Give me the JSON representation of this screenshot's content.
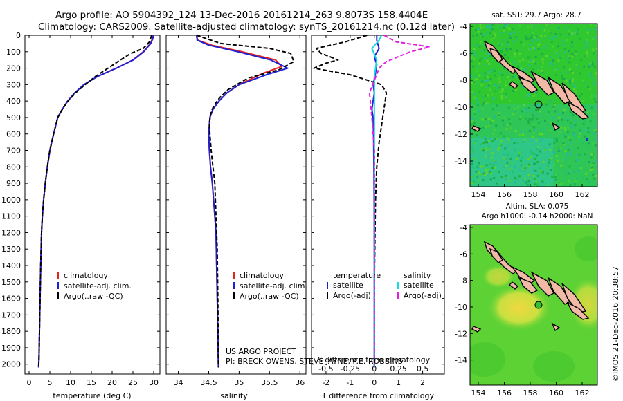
{
  "header": {
    "title_line1": "Argo profile: AO 5904392_124 13-Dec-2016 20161214_263 9.8073S 158.4404E",
    "title_line2": "Climatology: CARS2009. Satellite-adjusted climatology: synTS_20161214.nc (0.12d later)"
  },
  "credits": {
    "project": "US ARGO PROJECT",
    "pi": "PI: BRECK OWENS, STEVE JAYNE, P.E. ROBBINS",
    "imos": "©IMOS 21-Dec-2016 20:38:57"
  },
  "colors": {
    "climatology": "#e8231f",
    "satellite": "#1f1fd6",
    "argo": "#000000",
    "salinity_satellite": "#18d8e0",
    "salinity_argo": "#e020e0",
    "map_green": "#28c832",
    "land": "#f2b9a7"
  },
  "panel_labels": {
    "temp_x": "temperature (deg C)",
    "sal_x": "salinity",
    "diff_x": "T difference from climatology",
    "diff_x2": "S difference from climatology"
  },
  "legend_temp": {
    "climatology": "climatology",
    "satellite": "satellite-adj. clim.",
    "argo": "Argo(..raw -QC)"
  },
  "legend_diff": {
    "temperature_head": "temperature",
    "salinity_head": "salinity",
    "satellite": "satellite",
    "argo": "Argo(-adj)"
  },
  "map_top": {
    "title": "sat. SST: 29.7 Argo: 28.7",
    "icon": "sst-map-icon"
  },
  "map_bottom": {
    "title_line1": "Altim. SLA: 0.075",
    "title_line2": "Argo h1000: -0.14 h2000: NaN",
    "icon": "sla-map-icon"
  },
  "map_axes": {
    "lon_ticks": [
      "154",
      "156",
      "158",
      "160",
      "162"
    ],
    "lat_ticks": [
      "-4",
      "-6",
      "-8",
      "-10",
      "-12",
      "-14"
    ]
  },
  "chart_data": [
    {
      "type": "line",
      "name": "temperature-profile",
      "xlabel": "temperature (deg C)",
      "ylabel": "",
      "xlim": [
        -1,
        31.5
      ],
      "ylim": [
        2060,
        0
      ],
      "x_ticks": [
        0,
        5,
        10,
        15,
        20,
        25,
        30
      ],
      "y_ticks": [
        0,
        100,
        200,
        300,
        400,
        500,
        600,
        700,
        800,
        900,
        1000,
        1100,
        1200,
        1300,
        1400,
        1500,
        1600,
        1700,
        1800,
        1900,
        2000
      ],
      "series": [
        {
          "name": "climatology",
          "color": "#e8231f",
          "x": [
            29.8,
            29.7,
            29.2,
            27.5,
            25.0,
            21.0,
            16.5,
            13.2,
            11.0,
            9.3,
            8.0,
            6.9,
            5.9,
            5.0,
            4.4,
            3.9,
            3.5,
            3.2,
            3.0,
            2.8,
            2.65,
            2.5,
            2.4,
            2.3
          ],
          "y": [
            0,
            20,
            50,
            100,
            150,
            200,
            250,
            300,
            350,
            400,
            450,
            500,
            600,
            700,
            800,
            900,
            1000,
            1100,
            1200,
            1400,
            1600,
            1800,
            1950,
            2020
          ]
        },
        {
          "name": "satellite-adj. clim.",
          "color": "#1f1fd6",
          "x": [
            29.9,
            29.8,
            29.3,
            27.6,
            25.1,
            21.0,
            16.5,
            13.2,
            11.0,
            9.3,
            8.0,
            6.9,
            5.9,
            5.0,
            4.4,
            3.9,
            3.5,
            3.2,
            3.0,
            2.8,
            2.65,
            2.5,
            2.4,
            2.3
          ],
          "y": [
            0,
            20,
            50,
            100,
            150,
            200,
            250,
            300,
            350,
            400,
            450,
            500,
            600,
            700,
            800,
            900,
            1000,
            1100,
            1200,
            1400,
            1600,
            1800,
            1950,
            2020
          ]
        },
        {
          "name": "Argo(..raw -QC)",
          "color": "#000000",
          "dashed": true,
          "x": [
            29.5,
            29.0,
            27.5,
            24.5,
            22.0,
            19.0,
            16.0,
            13.5,
            11.2,
            9.4,
            8.0,
            6.9,
            5.9,
            5.0,
            4.4,
            3.9,
            3.5,
            3.2,
            3.0,
            2.8,
            2.65,
            2.5,
            2.4,
            2.3
          ],
          "y": [
            0,
            40,
            80,
            110,
            150,
            200,
            250,
            300,
            350,
            400,
            450,
            500,
            600,
            700,
            800,
            900,
            1000,
            1100,
            1200,
            1400,
            1600,
            1800,
            1950,
            2020
          ]
        }
      ]
    },
    {
      "type": "line",
      "name": "salinity-profile",
      "xlabel": "salinity",
      "xlim": [
        33.8,
        36.1
      ],
      "ylim": [
        2060,
        0
      ],
      "x_ticks": [
        34,
        34.5,
        35,
        35.5,
        36
      ],
      "series": [
        {
          "name": "climatology",
          "color": "#e8231f",
          "x": [
            34.3,
            34.32,
            34.55,
            35.05,
            35.6,
            35.7,
            35.4,
            35.0,
            34.8,
            34.67,
            34.57,
            34.52,
            34.5,
            34.51,
            34.53,
            34.56,
            34.58,
            34.6,
            34.62,
            34.63,
            34.64,
            34.65,
            34.66
          ],
          "y": [
            0,
            30,
            60,
            100,
            150,
            190,
            230,
            300,
            350,
            400,
            450,
            500,
            600,
            700,
            800,
            900,
            1000,
            1100,
            1200,
            1400,
            1600,
            1800,
            2020
          ]
        },
        {
          "name": "satellite-adj. clim.",
          "color": "#1f1fd6",
          "x": [
            34.3,
            34.31,
            34.5,
            34.98,
            35.52,
            35.8,
            35.45,
            35.0,
            34.8,
            34.67,
            34.57,
            34.52,
            34.5,
            34.51,
            34.53,
            34.56,
            34.58,
            34.6,
            34.62,
            34.63,
            34.64,
            34.65,
            34.66
          ],
          "y": [
            0,
            30,
            60,
            100,
            150,
            200,
            240,
            300,
            350,
            400,
            450,
            500,
            600,
            700,
            800,
            900,
            1000,
            1100,
            1200,
            1400,
            1600,
            1800,
            2020
          ]
        },
        {
          "name": "Argo(..raw -QC)",
          "color": "#000000",
          "dashed": true,
          "x": [
            34.3,
            34.7,
            35.5,
            35.85,
            35.9,
            35.65,
            35.15,
            34.82,
            34.68,
            34.58,
            34.53,
            34.51,
            34.52,
            34.54,
            34.57,
            34.6,
            34.62,
            34.64,
            34.65,
            34.66
          ],
          "y": [
            0,
            50,
            80,
            110,
            160,
            210,
            260,
            330,
            380,
            430,
            480,
            540,
            600,
            700,
            800,
            900,
            1100,
            1300,
            1600,
            2020
          ]
        }
      ]
    },
    {
      "type": "line",
      "name": "difference-profile",
      "xlabel": "T difference from climatology",
      "xlabel2": "S difference from climatology",
      "xlim": [
        -2.6,
        2.9
      ],
      "ylim": [
        2060,
        0
      ],
      "x_ticks_T": [
        -2,
        -1,
        0,
        1,
        2
      ],
      "x_ticks_S": [
        "-0.5",
        "-0.25",
        "0",
        "0.25",
        "0.5"
      ],
      "series": [
        {
          "name": "temperature satellite",
          "color": "#1f1fd6",
          "x": [
            0.1,
            0.1,
            0.2,
            0.0,
            0.1,
            0.05,
            -0.05,
            0.0,
            -0.05,
            -0.1,
            -0.05,
            -0.03,
            -0.02,
            -0.01,
            0.0,
            0.0
          ],
          "y": [
            0,
            30,
            80,
            130,
            180,
            230,
            300,
            350,
            400,
            450,
            500,
            600,
            800,
            1000,
            1500,
            2020
          ]
        },
        {
          "name": "temperature Argo(-adj)",
          "color": "#000000",
          "dashed": true,
          "x": [
            -0.3,
            -1.2,
            -2.4,
            -2.2,
            -1.5,
            -2.0,
            -2.5,
            -1.0,
            0.3,
            0.5,
            0.4,
            0.3,
            0.2,
            0.1,
            0.05,
            0.0,
            0.0
          ],
          "y": [
            0,
            40,
            80,
            110,
            150,
            170,
            200,
            240,
            300,
            350,
            450,
            550,
            650,
            800,
            1000,
            1500,
            2020
          ]
        },
        {
          "name": "salinity satellite",
          "color": "#18d8e0",
          "x": [
            0.3,
            0.2,
            -0.1,
            0.1,
            0.0,
            0.0,
            0.0,
            0.0
          ],
          "y": [
            0,
            30,
            80,
            150,
            250,
            400,
            1000,
            2020
          ]
        },
        {
          "name": "salinity Argo(-adj)",
          "color": "#e020e0",
          "dashed": true,
          "x": [
            0.4,
            0.9,
            2.3,
            1.5,
            1.0,
            0.5,
            0.2,
            -0.2,
            -0.1,
            0.0,
            0.0,
            0.0
          ],
          "y": [
            0,
            40,
            70,
            100,
            130,
            160,
            200,
            350,
            500,
            700,
            1000,
            2020
          ]
        }
      ]
    }
  ]
}
